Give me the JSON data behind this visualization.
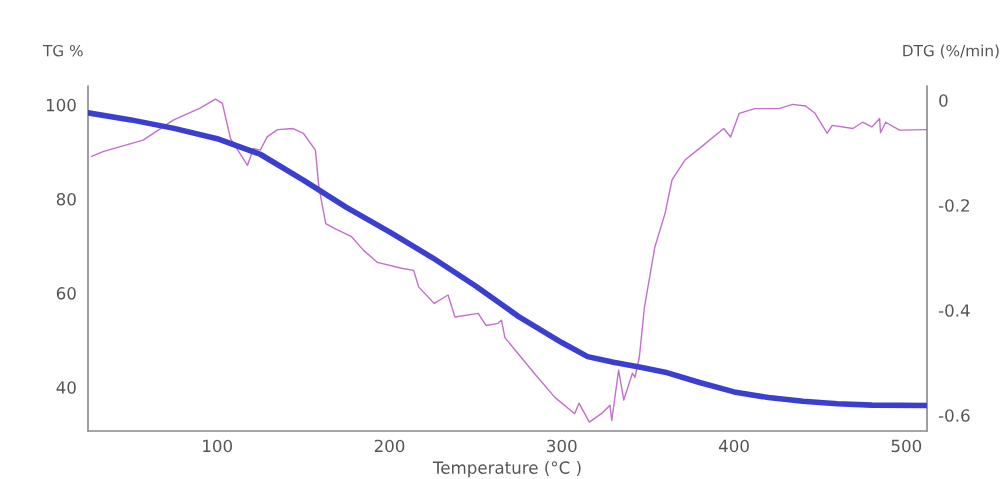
{
  "chart_data": {
    "type": "line",
    "xlabel": "Temperature (°C )",
    "ylabel": "TG %",
    "y2label": "DTG (%/min)",
    "xlim": [
      25,
      512
    ],
    "xticks": [
      100,
      200,
      300,
      400,
      500
    ],
    "ylim": [
      30.7,
      104
    ],
    "yticks": [
      40,
      60,
      80,
      100
    ],
    "y2lim": [
      -0.63,
      0.027
    ],
    "y2ticks": [
      0,
      -0.2,
      -0.4,
      -0.6
    ],
    "grid": false,
    "legend": false,
    "marker": "none",
    "line_style": "solid",
    "series": [
      {
        "color": "#3a3fd0",
        "x": [
          25,
          50,
          75,
          100,
          125,
          150,
          175,
          200,
          225,
          250,
          275,
          300,
          315,
          330,
          345,
          360,
          380,
          400,
          420,
          440,
          460,
          480,
          512
        ],
        "values": [
          98.3,
          96.8,
          95,
          92.8,
          89.5,
          84,
          78.2,
          73,
          67.5,
          61.5,
          55,
          49.5,
          46.5,
          45.3,
          44.3,
          43.2,
          41,
          39,
          37.8,
          37,
          36.5,
          36.2,
          36.1
        ]
      },
      {
        "color": "#c070c8",
        "axis": "y2",
        "x": [
          27.1,
          33.7,
          57,
          74.5,
          90,
          99,
          103,
          107.7,
          117.6,
          121,
          125,
          129,
          135,
          144,
          150,
          157,
          159,
          163,
          168,
          178,
          185,
          193,
          207,
          214,
          217,
          226,
          234,
          238,
          251.5,
          256,
          263,
          265,
          267,
          284,
          296,
          307.5,
          310,
          316,
          323,
          328,
          329,
          333,
          336,
          341,
          342.5,
          345,
          348,
          354,
          360,
          364,
          371.5,
          381,
          394,
          398,
          403,
          412,
          426,
          434,
          441.5,
          447,
          454,
          457,
          469,
          474.6,
          480,
          484.5,
          485,
          488,
          496,
          512
        ],
        "values": [
          -0.107,
          -0.098,
          -0.076,
          -0.038,
          -0.015,
          0.002,
          -0.006,
          -0.073,
          -0.124,
          -0.092,
          -0.095,
          -0.07,
          -0.056,
          -0.054,
          -0.063,
          -0.095,
          -0.165,
          -0.235,
          -0.244,
          -0.26,
          -0.286,
          -0.309,
          -0.32,
          -0.324,
          -0.356,
          -0.387,
          -0.371,
          -0.413,
          -0.406,
          -0.429,
          -0.425,
          -0.419,
          -0.452,
          -0.52,
          -0.566,
          -0.597,
          -0.577,
          -0.613,
          -0.597,
          -0.581,
          -0.61,
          -0.514,
          -0.571,
          -0.52,
          -0.528,
          -0.49,
          -0.394,
          -0.28,
          -0.215,
          -0.152,
          -0.114,
          -0.089,
          -0.054,
          -0.07,
          -0.025,
          -0.016,
          -0.016,
          -0.008,
          -0.011,
          -0.025,
          -0.063,
          -0.048,
          -0.054,
          -0.042,
          -0.051,
          -0.035,
          -0.062,
          -0.042,
          -0.057,
          -0.056
        ]
      }
    ]
  }
}
